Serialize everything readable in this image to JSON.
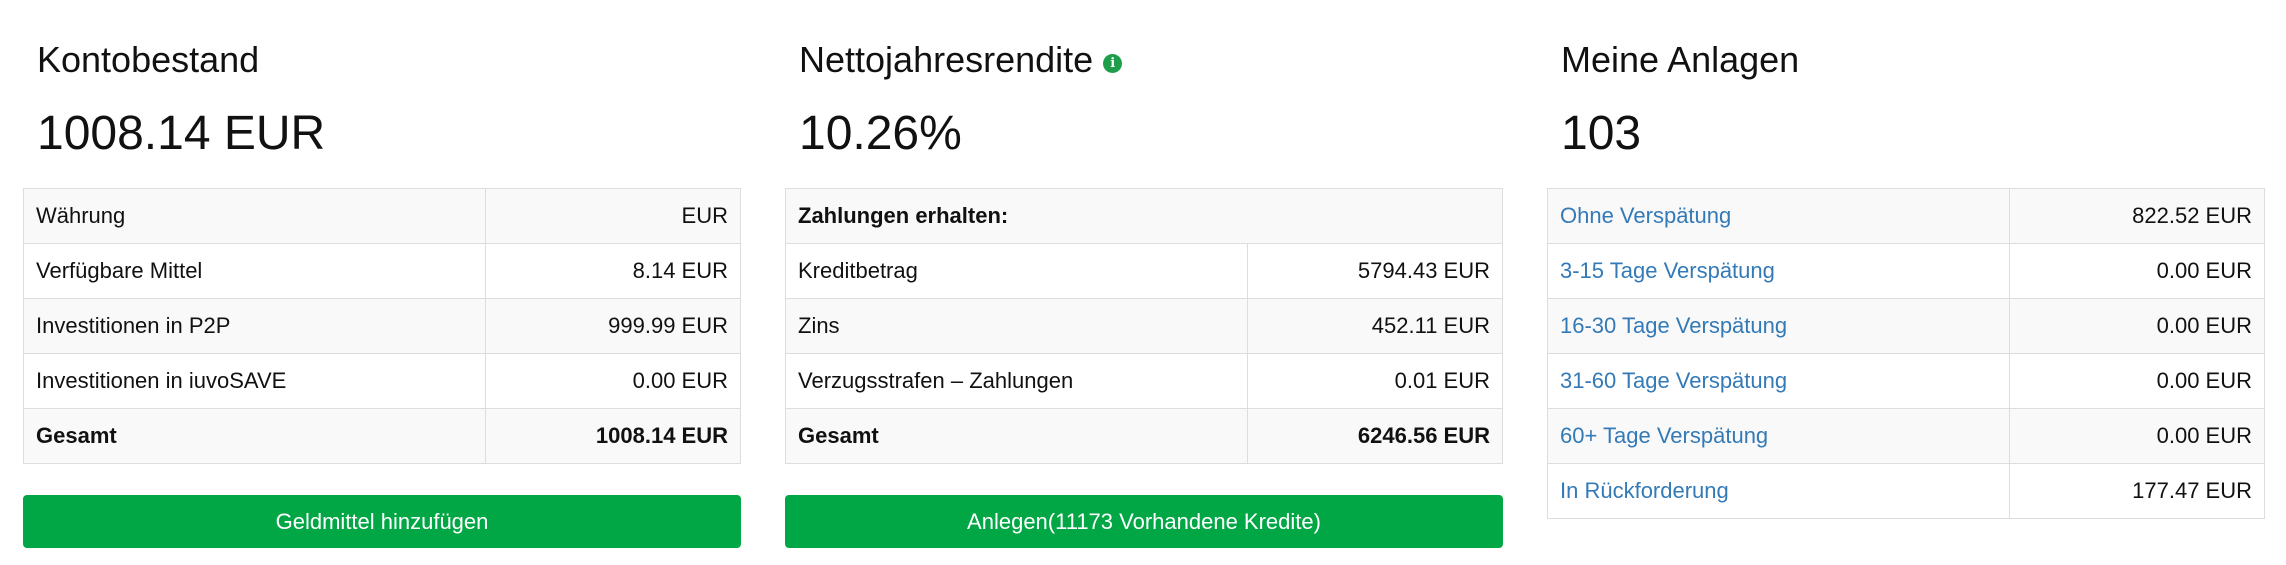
{
  "account": {
    "title": "Kontobestand",
    "value": "1008.14 EUR",
    "rows": [
      {
        "label": "Währung",
        "value": "EUR"
      },
      {
        "label": "Verfügbare Mittel",
        "value": "8.14 EUR"
      },
      {
        "label": "Investitionen in P2P",
        "value": "999.99 EUR"
      },
      {
        "label": "Investitionen in iuvoSAVE",
        "value": "0.00 EUR"
      },
      {
        "label": "Gesamt",
        "value": "1008.14 EUR"
      }
    ],
    "button_label": "Geldmittel hinzufügen"
  },
  "returns": {
    "title": "Nettojahresrendite",
    "info_icon_glyph": "i",
    "value": "10.26%",
    "header": "Zahlungen erhalten:",
    "rows": [
      {
        "label": "Kreditbetrag",
        "value": "5794.43 EUR"
      },
      {
        "label": "Zins",
        "value": "452.11 EUR"
      },
      {
        "label": "Verzugsstrafen – Zahlungen",
        "value": "0.01 EUR"
      },
      {
        "label": "Gesamt",
        "value": "6246.56 EUR"
      }
    ],
    "button_label": "Anlegen(11173 Vorhandene Kredite)"
  },
  "investments": {
    "title": "Meine Anlagen",
    "value": "103",
    "rows": [
      {
        "label": "Ohne Verspätung",
        "value": "822.52 EUR"
      },
      {
        "label": "3-15 Tage Verspätung",
        "value": "0.00 EUR"
      },
      {
        "label": "16-30 Tage Verspätung",
        "value": "0.00 EUR"
      },
      {
        "label": "31-60 Tage Verspätung",
        "value": "0.00 EUR"
      },
      {
        "label": "60+ Tage Verspätung",
        "value": "0.00 EUR"
      },
      {
        "label": "In Rückforderung",
        "value": "177.47 EUR"
      }
    ]
  },
  "colors": {
    "button_green": "#02a745",
    "link_blue": "#337ab7",
    "info_icon_green": "#1e9e4b"
  }
}
